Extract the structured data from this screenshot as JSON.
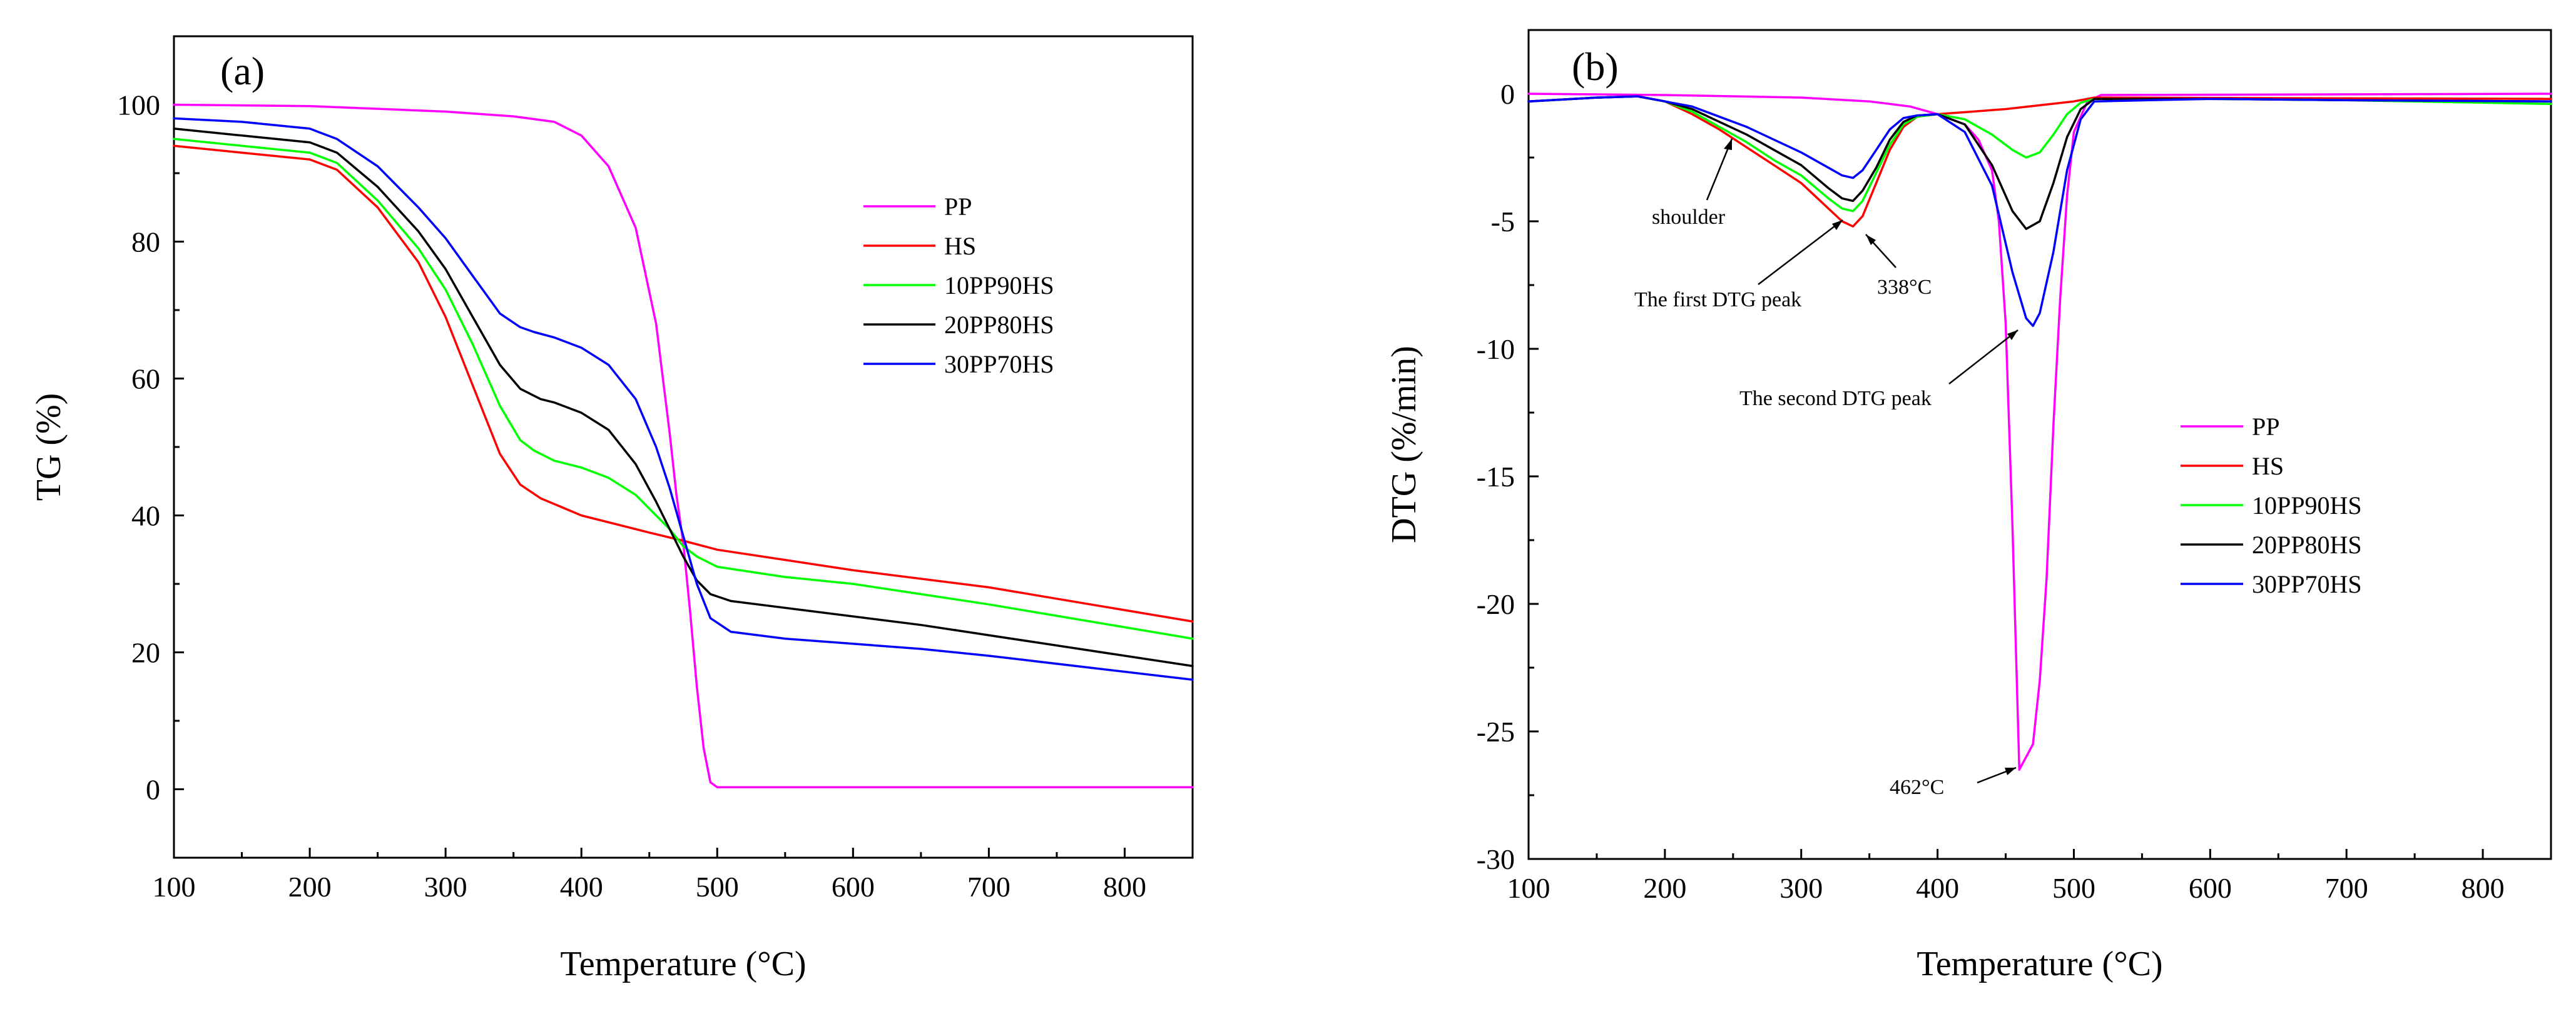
{
  "chart_data": [
    {
      "type": "line",
      "panel_label": "(a)",
      "xlabel": "Temperature (°C)",
      "ylabel": "TG (%)",
      "xlim": [
        100,
        850
      ],
      "ylim": [
        -10,
        110
      ],
      "xticks": [
        100,
        200,
        300,
        400,
        500,
        600,
        700,
        800
      ],
      "yticks": [
        0,
        20,
        40,
        60,
        80,
        100
      ],
      "legend_position": "right-middle",
      "series": [
        {
          "name": "PP",
          "color": "#ff00ff",
          "x": [
            100,
            200,
            300,
            350,
            380,
            400,
            420,
            440,
            455,
            465,
            470,
            475,
            480,
            485,
            490,
            495,
            500,
            850
          ],
          "y": [
            100,
            99.8,
            99,
            98.3,
            97.5,
            95.5,
            91,
            82,
            68,
            52,
            43,
            36,
            26,
            15,
            6,
            1,
            0.3,
            0.3
          ]
        },
        {
          "name": "HS",
          "color": "#ff0000",
          "x": [
            100,
            150,
            200,
            220,
            250,
            280,
            300,
            320,
            340,
            355,
            370,
            400,
            450,
            475,
            500,
            600,
            700,
            850
          ],
          "y": [
            94,
            93,
            92,
            90.5,
            85,
            77,
            69,
            59,
            49,
            44.5,
            42.5,
            40,
            37.5,
            36.3,
            35,
            32,
            29.5,
            24.5
          ]
        },
        {
          "name": "10PP90HS",
          "color": "#00ff00",
          "x": [
            100,
            150,
            200,
            220,
            250,
            280,
            300,
            320,
            340,
            355,
            365,
            380,
            400,
            420,
            440,
            455,
            465,
            475,
            485,
            500,
            550,
            600,
            650,
            700,
            850
          ],
          "y": [
            95,
            94,
            93,
            91.5,
            86,
            79,
            73,
            65,
            56,
            51,
            49.5,
            48,
            47,
            45.5,
            43,
            40,
            38,
            35.5,
            34,
            32.5,
            31,
            30,
            28.5,
            27,
            22
          ]
        },
        {
          "name": "20PP80HS",
          "color": "#000000",
          "x": [
            100,
            150,
            200,
            220,
            250,
            280,
            300,
            320,
            340,
            355,
            370,
            380,
            400,
            420,
            440,
            455,
            465,
            475,
            485,
            495,
            510,
            550,
            650,
            700,
            850
          ],
          "y": [
            96.5,
            95.5,
            94.5,
            93,
            88,
            81.5,
            76,
            69,
            62,
            58.5,
            57,
            56.5,
            55,
            52.5,
            47.5,
            42,
            38,
            34,
            30.5,
            28.5,
            27.5,
            26.5,
            24,
            22.5,
            18
          ]
        },
        {
          "name": "30PP70HS",
          "color": "#0000ff",
          "x": [
            100,
            150,
            200,
            220,
            250,
            280,
            300,
            320,
            340,
            355,
            365,
            380,
            400,
            420,
            440,
            455,
            465,
            475,
            485,
            495,
            510,
            550,
            650,
            700,
            850
          ],
          "y": [
            98,
            97.5,
            96.5,
            95,
            91,
            85,
            80.5,
            75,
            69.5,
            67.5,
            66.8,
            66,
            64.5,
            62,
            57,
            50,
            44,
            37,
            30,
            25,
            23,
            22,
            20.5,
            19.5,
            16
          ]
        }
      ]
    },
    {
      "type": "line",
      "panel_label": "(b)",
      "xlabel": "Temperature (°C)",
      "ylabel": "DTG (%/min)",
      "xlim": [
        100,
        850
      ],
      "ylim": [
        -30,
        2.5
      ],
      "xticks": [
        100,
        200,
        300,
        400,
        500,
        600,
        700,
        800
      ],
      "yticks": [
        0,
        -5,
        -10,
        -15,
        -20,
        -25,
        -30
      ],
      "legend_position": "lower-right",
      "annotations": [
        "shoulder",
        "The first DTG peak",
        "338°C",
        "The second DTG peak",
        "462°C"
      ],
      "series": [
        {
          "name": "PP",
          "color": "#ff00ff",
          "x": [
            100,
            200,
            300,
            350,
            380,
            400,
            420,
            430,
            440,
            445,
            450,
            455,
            460,
            465,
            470,
            475,
            480,
            485,
            490,
            495,
            500,
            510,
            520,
            850
          ],
          "y": [
            0,
            -0.05,
            -0.15,
            -0.3,
            -0.5,
            -0.8,
            -1.2,
            -1.8,
            -3,
            -5,
            -9,
            -17,
            -26.5,
            -26,
            -25.5,
            -23,
            -19,
            -13,
            -8,
            -4,
            -1.5,
            -0.3,
            -0.05,
            0
          ]
        },
        {
          "name": "HS",
          "color": "#ff0000",
          "x": [
            100,
            150,
            180,
            200,
            220,
            240,
            260,
            280,
            300,
            320,
            330,
            338,
            345,
            355,
            365,
            375,
            385,
            400,
            450,
            500,
            515,
            850
          ],
          "y": [
            -0.3,
            -0.15,
            -0.1,
            -0.3,
            -0.8,
            -1.4,
            -2.1,
            -2.8,
            -3.5,
            -4.5,
            -5,
            -5.2,
            -4.8,
            -3.5,
            -2.2,
            -1.3,
            -0.9,
            -0.8,
            -0.6,
            -0.3,
            -0.15,
            -0.2
          ]
        },
        {
          "name": "10PP90HS",
          "color": "#00ff00",
          "x": [
            100,
            150,
            180,
            200,
            220,
            240,
            260,
            280,
            300,
            320,
            330,
            338,
            345,
            355,
            365,
            375,
            385,
            400,
            420,
            440,
            455,
            465,
            475,
            485,
            495,
            505,
            515,
            600,
            700,
            850
          ],
          "y": [
            -0.3,
            -0.15,
            -0.1,
            -0.3,
            -0.7,
            -1.3,
            -1.9,
            -2.6,
            -3.2,
            -4.1,
            -4.5,
            -4.6,
            -4.2,
            -3.1,
            -2,
            -1.2,
            -0.9,
            -0.8,
            -1,
            -1.6,
            -2.2,
            -2.5,
            -2.3,
            -1.6,
            -0.8,
            -0.35,
            -0.2,
            -0.2,
            -0.25,
            -0.4
          ]
        },
        {
          "name": "20PP80HS",
          "color": "#000000",
          "x": [
            100,
            150,
            180,
            200,
            220,
            240,
            260,
            280,
            300,
            320,
            330,
            338,
            345,
            355,
            365,
            375,
            385,
            400,
            420,
            440,
            455,
            465,
            475,
            485,
            495,
            505,
            515,
            600,
            700,
            850
          ],
          "y": [
            -0.3,
            -0.15,
            -0.1,
            -0.3,
            -0.6,
            -1.1,
            -1.6,
            -2.2,
            -2.8,
            -3.7,
            -4.1,
            -4.2,
            -3.8,
            -2.9,
            -1.8,
            -1.1,
            -0.85,
            -0.8,
            -1.2,
            -2.8,
            -4.6,
            -5.3,
            -5,
            -3.5,
            -1.7,
            -0.6,
            -0.2,
            -0.2,
            -0.25,
            -0.3
          ]
        },
        {
          "name": "30PP70HS",
          "color": "#0000ff",
          "x": [
            100,
            150,
            180,
            200,
            220,
            240,
            260,
            280,
            300,
            320,
            330,
            338,
            345,
            355,
            365,
            375,
            385,
            400,
            420,
            440,
            455,
            465,
            470,
            475,
            485,
            495,
            505,
            515,
            600,
            700,
            850
          ],
          "y": [
            -0.3,
            -0.15,
            -0.1,
            -0.3,
            -0.5,
            -0.9,
            -1.3,
            -1.8,
            -2.3,
            -2.9,
            -3.2,
            -3.3,
            -3,
            -2.2,
            -1.4,
            -0.95,
            -0.85,
            -0.8,
            -1.5,
            -3.6,
            -7,
            -8.8,
            -9.1,
            -8.6,
            -6.2,
            -3,
            -1,
            -0.3,
            -0.2,
            -0.25,
            -0.3
          ]
        }
      ]
    }
  ]
}
